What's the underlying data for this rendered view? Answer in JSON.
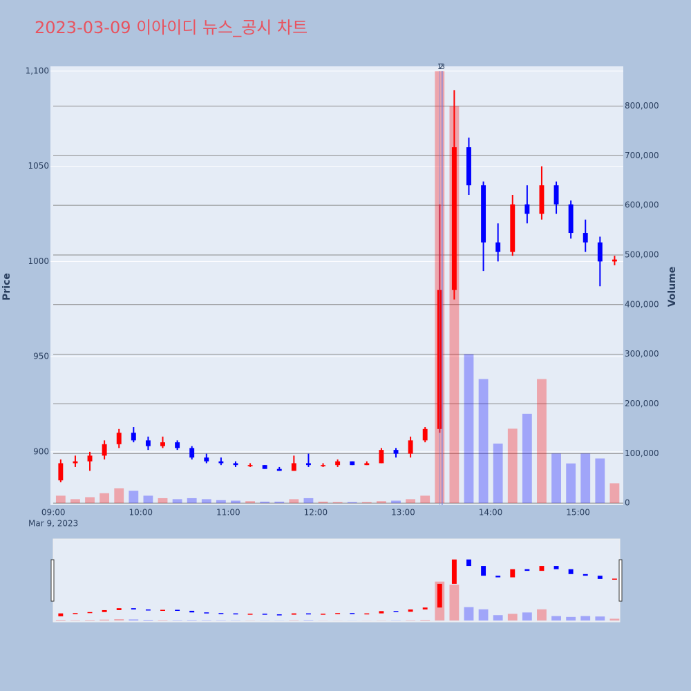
{
  "chart_data": {
    "type": "candlestick",
    "title": "2023-03-09 이아이디 뉴스_공시 차트",
    "ylabel": "Price",
    "y2label": "Volume",
    "x_date_label": "Mar 9, 2023",
    "increasing_color": "#ff0000",
    "decreasing_color": "#0000ff",
    "x": [
      "09:00",
      "09:10",
      "09:20",
      "09:30",
      "09:40",
      "09:50",
      "10:00",
      "10:10",
      "10:20",
      "10:30",
      "10:40",
      "10:50",
      "11:00",
      "11:10",
      "11:20",
      "11:30",
      "11:40",
      "11:50",
      "12:00",
      "12:10",
      "12:20",
      "12:30",
      "12:40",
      "12:50",
      "13:00",
      "13:10",
      "13:20",
      "13:30",
      "13:40",
      "13:50",
      "14:00",
      "14:10",
      "14:20",
      "14:30",
      "14:40",
      "14:50",
      "15:00",
      "15:10",
      "15:20"
    ],
    "open": [
      885,
      894,
      895,
      898,
      904,
      910,
      906,
      903,
      905,
      902,
      897,
      895,
      894,
      893,
      893,
      891,
      890,
      894,
      893,
      893,
      895,
      893,
      894,
      901,
      899,
      906,
      912,
      985,
      1060,
      1040,
      1010,
      1005,
      1030,
      1025,
      1040,
      1030,
      1015,
      1010,
      1000
    ],
    "high": [
      896,
      898,
      900,
      906,
      912,
      913,
      908,
      908,
      906,
      903,
      899,
      897,
      895,
      894,
      893,
      892,
      898,
      899,
      894,
      896,
      895,
      895,
      902,
      902,
      908,
      913,
      1030,
      1090,
      1065,
      1042,
      1020,
      1035,
      1040,
      1050,
      1042,
      1032,
      1022,
      1013,
      1003
    ],
    "low": [
      884,
      892,
      890,
      896,
      902,
      905,
      901,
      902,
      901,
      896,
      894,
      893,
      892,
      892,
      891,
      890,
      890,
      892,
      892,
      892,
      893,
      893,
      894,
      897,
      897,
      905,
      910,
      980,
      1035,
      995,
      1000,
      1003,
      1020,
      1022,
      1025,
      1012,
      1005,
      987,
      998
    ],
    "close": [
      894,
      895,
      898,
      904,
      910,
      906,
      903,
      905,
      902,
      897,
      895,
      894,
      893,
      893,
      891,
      890,
      894,
      893,
      893,
      895,
      893,
      894,
      901,
      899,
      906,
      912,
      985,
      1060,
      1040,
      1010,
      1005,
      1030,
      1025,
      1040,
      1030,
      1015,
      1010,
      1000,
      1001
    ],
    "volume": [
      15000,
      8000,
      12000,
      20000,
      30000,
      25000,
      15000,
      10000,
      8000,
      10000,
      8000,
      6000,
      5000,
      4000,
      3000,
      3000,
      8000,
      10000,
      3000,
      2000,
      2000,
      2000,
      4000,
      5000,
      8000,
      15000,
      870000,
      800000,
      300000,
      250000,
      120000,
      150000,
      180000,
      250000,
      100000,
      80000,
      100000,
      90000,
      40000
    ],
    "annotations": [
      {
        "x": "13:20",
        "text": "1"
      },
      {
        "x": "13:21",
        "text": "2"
      },
      {
        "x": "13:22",
        "text": "3"
      }
    ],
    "xlim": [
      "08:58",
      "15:31"
    ],
    "xticks": [
      "09:00",
      "10:00",
      "11:00",
      "12:00",
      "13:00",
      "14:00",
      "15:00"
    ],
    "ylim": [
      872,
      1102.5
    ],
    "yticks": [
      900,
      950,
      1000,
      1050,
      {
        "value": 1100,
        "label": "1,100"
      }
    ],
    "y2lim": [
      -4000,
      880000
    ],
    "y2ticks": [
      0,
      {
        "value": 100000,
        "label": "100,000"
      },
      {
        "value": 200000,
        "label": "200,000"
      },
      {
        "value": 300000,
        "label": "300,000"
      },
      {
        "value": 400000,
        "label": "400,000"
      },
      {
        "value": 500000,
        "label": "500,000"
      },
      {
        "value": 600000,
        "label": "600,000"
      },
      {
        "value": 700000,
        "label": "700,000"
      },
      {
        "value": 800000,
        "label": "800,000"
      }
    ],
    "rangeslider": true
  }
}
